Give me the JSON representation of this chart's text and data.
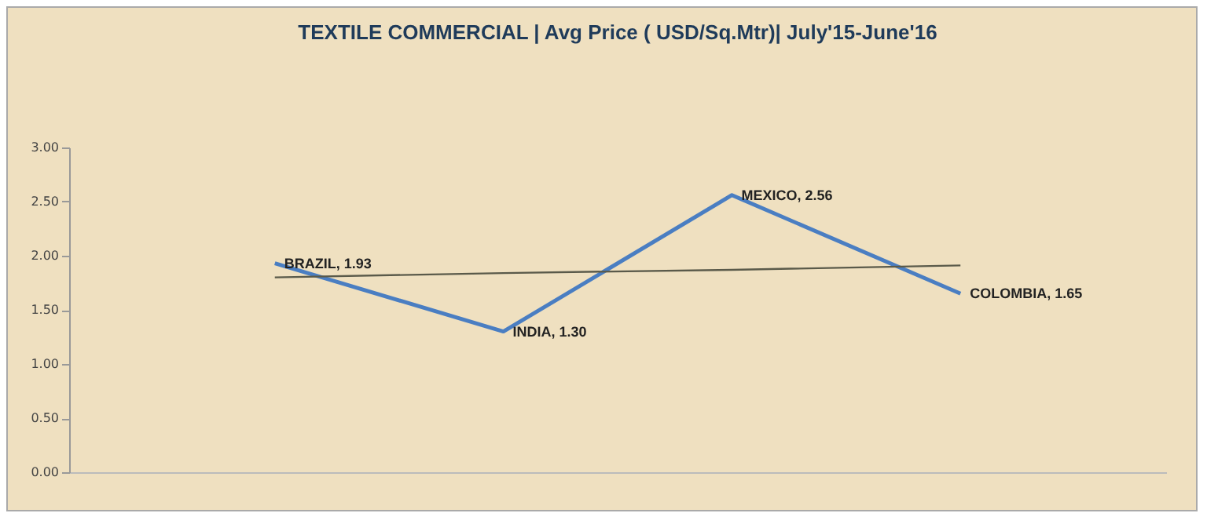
{
  "chart_data": {
    "type": "line",
    "title": "TEXTILE COMMERCIAL  | Avg Price ( USD/Sq.Mtr)| July'15-June'16",
    "categories": [
      null,
      null,
      null,
      null
    ],
    "series": [
      {
        "color": "#4a7ec2",
        "values": [
          1.93,
          1.3,
          2.56,
          1.65
        ],
        "value_labels": [
          "BRAZIL, 1.93",
          "INDIA, 1.30",
          "MEXICO, 2.56",
          "COLOMBIA, 1.65"
        ]
      },
      {
        "type": "line",
        "color": "#5a5a4a",
        "values": [
          1.8,
          1.84,
          1.87,
          1.91
        ]
      }
    ],
    "ylim": [
      0,
      3
    ],
    "yticks": [
      {
        "value": 0,
        "label": "0.00"
      },
      {
        "value": 0.5,
        "label": "0.50"
      },
      {
        "value": 1,
        "label": "1.00"
      },
      {
        "value": 1.5,
        "label": "1.50"
      },
      {
        "value": 2,
        "label": "2.00"
      },
      {
        "value": 2.5,
        "label": "2.50"
      },
      {
        "value": 3,
        "label": "3.00"
      }
    ],
    "tick_labels": "y",
    "grid": false,
    "marker": "none",
    "line_style": "solid"
  }
}
